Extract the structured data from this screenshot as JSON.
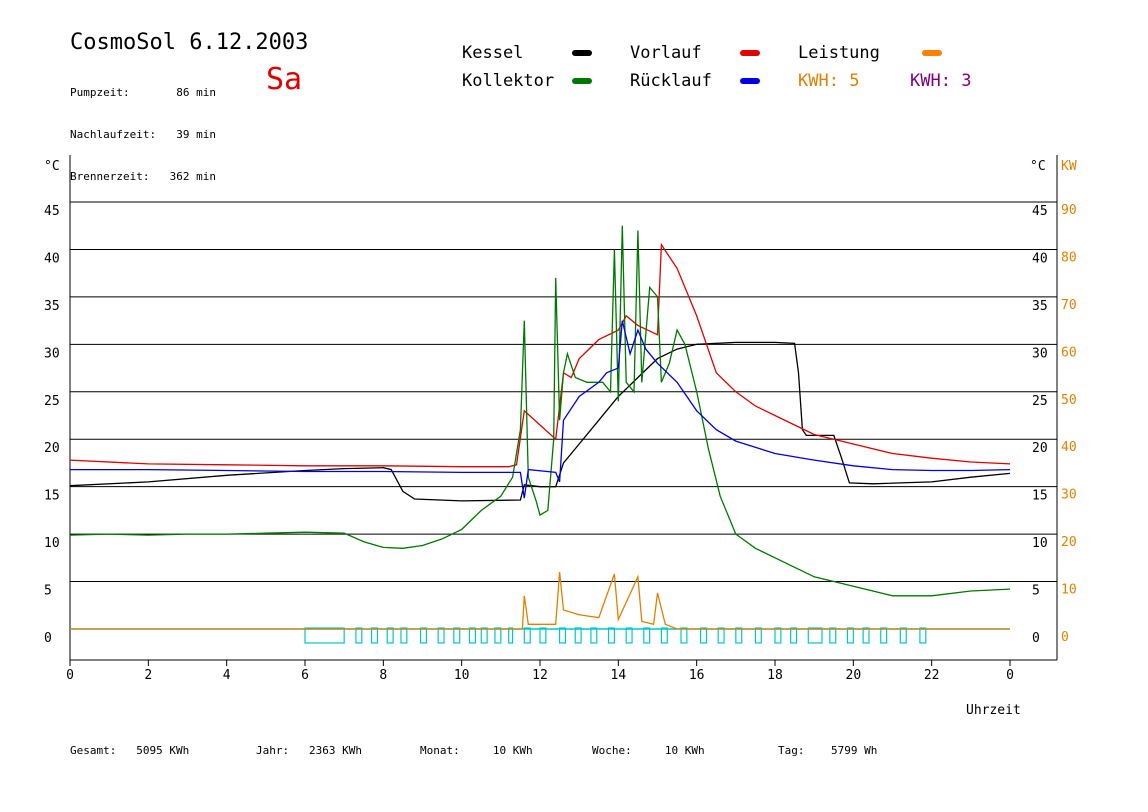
{
  "header": {
    "title": "CosmoSol 6.12.2003",
    "day": "Sa",
    "stats": [
      {
        "label": "Pumpzeit:",
        "value": "86 min"
      },
      {
        "label": "Nachlaufzeit:",
        "value": "39 min"
      },
      {
        "label": "Brennerzeit:",
        "value": "362 min"
      }
    ]
  },
  "legend": [
    {
      "name": "Kessel",
      "color": "#000000"
    },
    {
      "name": "Vorlauf",
      "color": "#e00000"
    },
    {
      "name": "Leistung",
      "color": "#ff8000"
    },
    {
      "name": "Kollektor",
      "color": "#007800"
    },
    {
      "name": "Rücklauf",
      "color": "#0000e0"
    }
  ],
  "kwh": [
    {
      "label": "KWH:",
      "value": "5",
      "color": "#e08000"
    },
    {
      "label": "KWH:",
      "value": "3",
      "color": "#800080"
    }
  ],
  "footer": [
    {
      "label": "Gesamt:",
      "value": "5095 KWh"
    },
    {
      "label": "Jahr:",
      "value": "2363 KWh"
    },
    {
      "label": "Monat:",
      "value": "10 KWh"
    },
    {
      "label": "Woche:",
      "value": "10 KWh"
    },
    {
      "label": "Tag:",
      "value": "5799 Wh"
    }
  ],
  "chart_data": {
    "type": "line",
    "xlabel": "Uhrzeit",
    "ylabel_left": "°C",
    "ylabel_right": [
      "°C",
      "KW"
    ],
    "xlim": [
      0,
      24
    ],
    "ylim": [
      0,
      50
    ],
    "x_ticks": [
      "0",
      "2",
      "4",
      "6",
      "8",
      "10",
      "12",
      "14",
      "16",
      "18",
      "20",
      "22",
      "0"
    ],
    "y_ticks": [
      0,
      5,
      10,
      15,
      20,
      25,
      30,
      35,
      40,
      45
    ],
    "y_ticks_kw": [
      0,
      10,
      20,
      30,
      40,
      50,
      60,
      70,
      80,
      90
    ],
    "grid": true,
    "series": [
      {
        "name": "Kessel",
        "color": "#000000",
        "points": [
          [
            0,
            15.1
          ],
          [
            2,
            15.5
          ],
          [
            4,
            16.2
          ],
          [
            6,
            16.7
          ],
          [
            7,
            16.9
          ],
          [
            8,
            17.0
          ],
          [
            8.2,
            16.8
          ],
          [
            8.5,
            14.5
          ],
          [
            8.8,
            13.7
          ],
          [
            10,
            13.5
          ],
          [
            11.5,
            13.6
          ],
          [
            11.6,
            15.2
          ],
          [
            12.0,
            15.0
          ],
          [
            12.4,
            15.0
          ],
          [
            12.6,
            17.5
          ],
          [
            13,
            19.5
          ],
          [
            13.5,
            22.0
          ],
          [
            14,
            24.5
          ],
          [
            14.5,
            26.5
          ],
          [
            15,
            28.5
          ],
          [
            15.5,
            29.5
          ],
          [
            16,
            30.0
          ],
          [
            17,
            30.2
          ],
          [
            18,
            30.2
          ],
          [
            18.5,
            30.1
          ],
          [
            18.6,
            27
          ],
          [
            18.7,
            21
          ],
          [
            18.8,
            20.4
          ],
          [
            19.5,
            20.4
          ],
          [
            19.7,
            18
          ],
          [
            19.9,
            15.4
          ],
          [
            20.5,
            15.3
          ],
          [
            22,
            15.5
          ],
          [
            23,
            16.0
          ],
          [
            24,
            16.4
          ]
        ]
      },
      {
        "name": "Vorlauf",
        "color": "#e00000",
        "points": [
          [
            0,
            17.8
          ],
          [
            2,
            17.4
          ],
          [
            4,
            17.3
          ],
          [
            6,
            17.2
          ],
          [
            8,
            17.2
          ],
          [
            10,
            17.1
          ],
          [
            11.2,
            17.1
          ],
          [
            11.4,
            17.3
          ],
          [
            11.6,
            23
          ],
          [
            12.0,
            21.5
          ],
          [
            12.4,
            20
          ],
          [
            12.6,
            27
          ],
          [
            12.8,
            26.5
          ],
          [
            13,
            28.5
          ],
          [
            13.5,
            30.5
          ],
          [
            14,
            31.5
          ],
          [
            14.2,
            33
          ],
          [
            14.5,
            32
          ],
          [
            15,
            31
          ],
          [
            15.1,
            40.5
          ],
          [
            15.5,
            38
          ],
          [
            16,
            33
          ],
          [
            16.5,
            27
          ],
          [
            17,
            25
          ],
          [
            17.5,
            23.5
          ],
          [
            18,
            22.5
          ],
          [
            18.5,
            21.5
          ],
          [
            19,
            20.5
          ],
          [
            20,
            19.5
          ],
          [
            21,
            18.5
          ],
          [
            22,
            18.0
          ],
          [
            23,
            17.6
          ],
          [
            24,
            17.4
          ]
        ]
      },
      {
        "name": "Kollektor",
        "color": "#007800",
        "points": [
          [
            0,
            9.9
          ],
          [
            1,
            10.0
          ],
          [
            2,
            9.9
          ],
          [
            3,
            10.0
          ],
          [
            4,
            10.0
          ],
          [
            5,
            10.1
          ],
          [
            6,
            10.2
          ],
          [
            7,
            10.1
          ],
          [
            7.5,
            9.2
          ],
          [
            8,
            8.6
          ],
          [
            8.5,
            8.5
          ],
          [
            9,
            8.8
          ],
          [
            9.5,
            9.5
          ],
          [
            10,
            10.5
          ],
          [
            10.5,
            12.5
          ],
          [
            11,
            14
          ],
          [
            11.3,
            16
          ],
          [
            11.5,
            21
          ],
          [
            11.6,
            32.5
          ],
          [
            11.7,
            16
          ],
          [
            11.9,
            13.5
          ],
          [
            12.0,
            12.0
          ],
          [
            12.2,
            12.5
          ],
          [
            12.35,
            20
          ],
          [
            12.4,
            37
          ],
          [
            12.5,
            22
          ],
          [
            12.6,
            27
          ],
          [
            12.7,
            29
          ],
          [
            12.9,
            26.5
          ],
          [
            13.2,
            26
          ],
          [
            13.6,
            26
          ],
          [
            13.8,
            25
          ],
          [
            13.9,
            40
          ],
          [
            14.0,
            24
          ],
          [
            14.1,
            42.5
          ],
          [
            14.2,
            26
          ],
          [
            14.4,
            25
          ],
          [
            14.5,
            42
          ],
          [
            14.6,
            26
          ],
          [
            14.8,
            36
          ],
          [
            15.0,
            35
          ],
          [
            15.1,
            26
          ],
          [
            15.3,
            28
          ],
          [
            15.5,
            31.5
          ],
          [
            15.7,
            30
          ],
          [
            16,
            25
          ],
          [
            16.3,
            19
          ],
          [
            16.6,
            14
          ],
          [
            17,
            10
          ],
          [
            17.5,
            8.5
          ],
          [
            18,
            7.5
          ],
          [
            18.5,
            6.5
          ],
          [
            19,
            5.5
          ],
          [
            20,
            4.5
          ],
          [
            21,
            3.5
          ],
          [
            22,
            3.5
          ],
          [
            23,
            4.0
          ],
          [
            24,
            4.2
          ]
        ]
      },
      {
        "name": "Rücklauf",
        "color": "#0000e0",
        "points": [
          [
            0,
            16.8
          ],
          [
            2,
            16.8
          ],
          [
            4,
            16.7
          ],
          [
            6,
            16.6
          ],
          [
            8,
            16.6
          ],
          [
            10,
            16.5
          ],
          [
            11.5,
            16.5
          ],
          [
            11.6,
            13.8
          ],
          [
            11.7,
            16.8
          ],
          [
            12.4,
            16.5
          ],
          [
            12.5,
            15.5
          ],
          [
            12.6,
            22
          ],
          [
            13,
            24.5
          ],
          [
            13.5,
            26
          ],
          [
            13.7,
            27
          ],
          [
            14,
            27.5
          ],
          [
            14.1,
            32.5
          ],
          [
            14.3,
            29
          ],
          [
            14.5,
            31.5
          ],
          [
            14.7,
            29.5
          ],
          [
            15,
            28
          ],
          [
            15.5,
            26
          ],
          [
            16,
            23
          ],
          [
            16.5,
            21
          ],
          [
            17,
            19.8
          ],
          [
            18,
            18.5
          ],
          [
            19,
            17.8
          ],
          [
            20,
            17.2
          ],
          [
            21,
            16.8
          ],
          [
            22,
            16.7
          ],
          [
            23,
            16.7
          ],
          [
            24,
            16.8
          ]
        ]
      },
      {
        "name": "Leistung",
        "color": "#e08000",
        "points": [
          [
            0,
            0
          ],
          [
            11.55,
            0
          ],
          [
            11.6,
            3.5
          ],
          [
            11.7,
            0.5
          ],
          [
            12.4,
            0.5
          ],
          [
            12.5,
            6
          ],
          [
            12.6,
            2
          ],
          [
            13,
            1.5
          ],
          [
            13.5,
            1.2
          ],
          [
            13.9,
            5.8
          ],
          [
            14.0,
            1.0
          ],
          [
            14.5,
            5.5
          ],
          [
            14.6,
            0.8
          ],
          [
            14.9,
            0.5
          ],
          [
            15.0,
            3.8
          ],
          [
            15.2,
            0.5
          ],
          [
            15.5,
            0
          ],
          [
            24,
            0
          ]
        ]
      },
      {
        "name": "Pumpe",
        "color": "#00c8c8",
        "points": []
      }
    ]
  }
}
